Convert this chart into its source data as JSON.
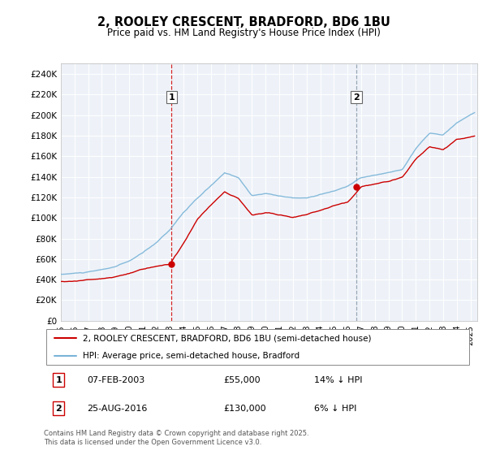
{
  "title": "2, ROOLEY CRESCENT, BRADFORD, BD6 1BU",
  "subtitle": "Price paid vs. HM Land Registry's House Price Index (HPI)",
  "sale1_date": "07-FEB-2003",
  "sale1_price": 55000,
  "sale1_label": "14% ↓ HPI",
  "sale2_date": "25-AUG-2016",
  "sale2_price": 130000,
  "sale2_label": "6% ↓ HPI",
  "legend_line1": "2, ROOLEY CRESCENT, BRADFORD, BD6 1BU (semi-detached house)",
  "legend_line2": "HPI: Average price, semi-detached house, Bradford",
  "footer": "Contains HM Land Registry data © Crown copyright and database right 2025.\nThis data is licensed under the Open Government Licence v3.0.",
  "hpi_color": "#7ab4d8",
  "price_color": "#cc0000",
  "vline1_color": "#cc0000",
  "vline2_color": "#8899aa",
  "ylim": [
    0,
    250000
  ],
  "ytick_step": 20000,
  "start_year": 1995,
  "end_year": 2025,
  "sale1_year": 2003.1,
  "sale2_year": 2016.65,
  "background_color": "#eef2f8",
  "box1_label": "1",
  "box2_label": "2"
}
